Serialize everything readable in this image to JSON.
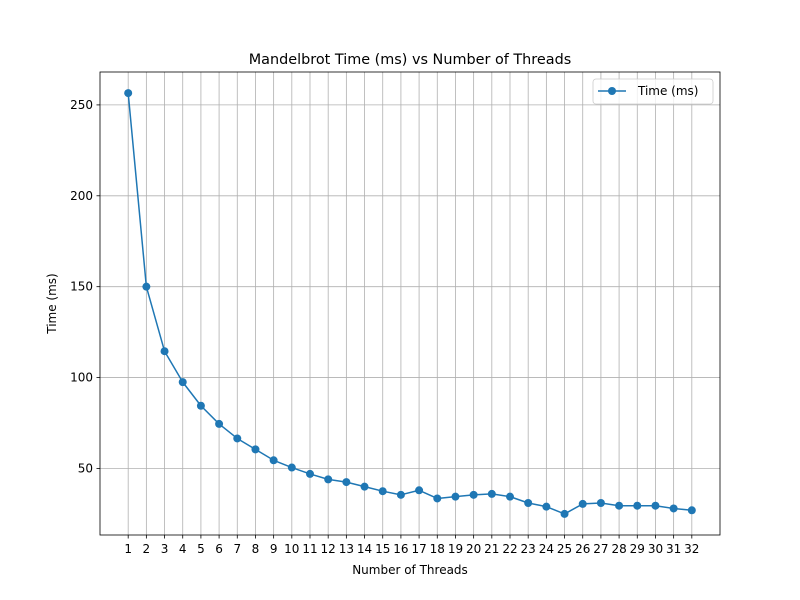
{
  "chart_data": {
    "type": "line",
    "title": "Mandelbrot Time (ms) vs Number of Threads",
    "xlabel": "Number of Threads",
    "ylabel": "Time (ms)",
    "x": [
      1,
      2,
      3,
      4,
      5,
      6,
      7,
      8,
      9,
      10,
      11,
      12,
      13,
      14,
      15,
      16,
      17,
      18,
      19,
      20,
      21,
      22,
      23,
      24,
      25,
      26,
      27,
      28,
      29,
      30,
      31,
      32
    ],
    "x_tick_labels": [
      "1",
      "2",
      "3",
      "4",
      "5",
      "6",
      "7",
      "8",
      "9",
      "10",
      "11",
      "12",
      "13",
      "14",
      "15",
      "16",
      "17",
      "18",
      "19",
      "20",
      "21",
      "22",
      "23",
      "24",
      "25",
      "26",
      "27",
      "28",
      "29",
      "30",
      "31",
      "32"
    ],
    "series": [
      {
        "name": "Time (ms)",
        "color": "#1f77b4",
        "marker": "circle",
        "values": [
          256.5,
          150.0,
          114.5,
          97.5,
          84.5,
          74.5,
          66.5,
          60.5,
          54.5,
          50.5,
          47.0,
          44.0,
          42.5,
          40.0,
          37.5,
          35.5,
          38.0,
          33.5,
          34.5,
          35.5,
          36.0,
          34.5,
          31.0,
          29.0,
          25.0,
          30.5,
          31.0,
          29.5,
          29.5,
          29.5,
          28.0,
          27.0
        ]
      }
    ],
    "y_ticks": [
      50,
      100,
      150,
      200,
      250
    ],
    "y_tick_labels": [
      "50",
      "100",
      "150",
      "200",
      "250"
    ],
    "xlim": [
      -0.55,
      33.55
    ],
    "ylim": [
      13.4,
      268.1
    ],
    "grid": true,
    "legend_position": "top-right",
    "legend_label": "Time (ms)"
  }
}
